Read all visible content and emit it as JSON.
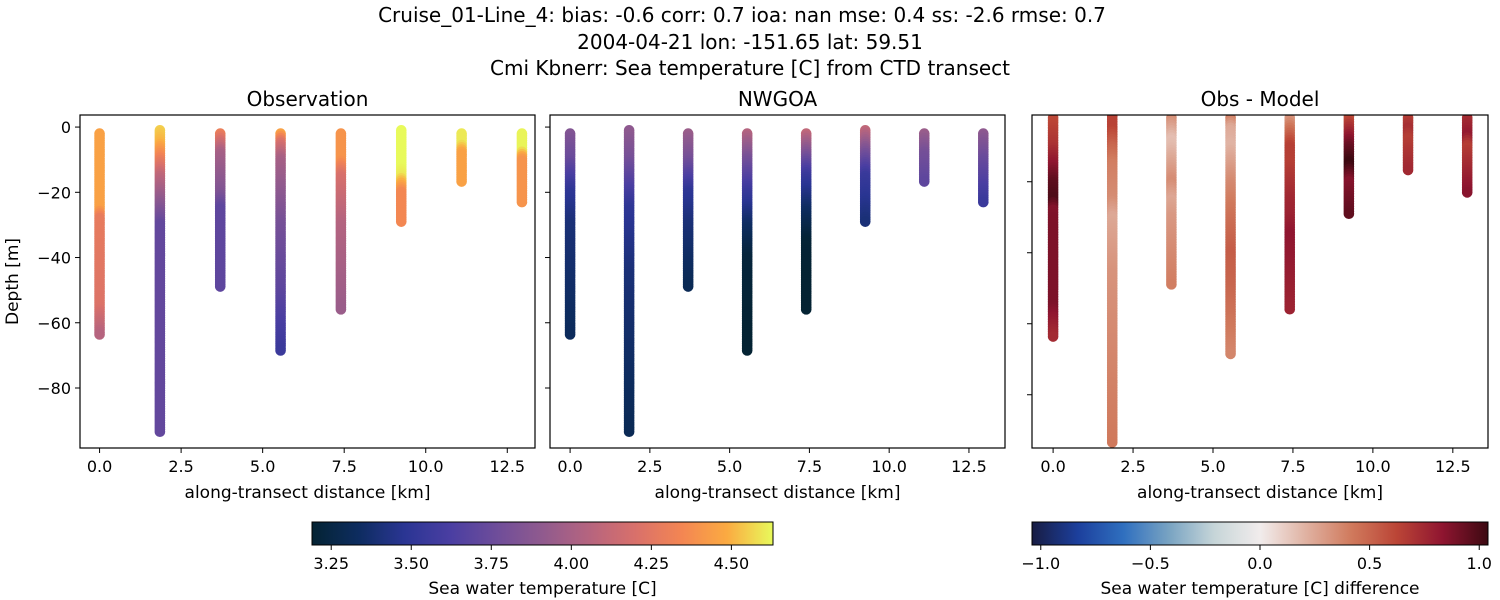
{
  "figure": {
    "title_lines": [
      "Cruise_01-Line_4: bias: -0.6  corr: 0.7  ioa: nan  mse: 0.4  ss: -2.6  rmse: 0.7",
      "2004-04-21 lon: -151.65 lat: 59.51",
      "Cmi Kbnerr: Sea temperature [C] from CTD transect"
    ]
  },
  "chart_data": [
    {
      "type": "scatter",
      "title": "Observation",
      "xlabel": "along-transect distance [km]",
      "ylabel": "Depth [m]",
      "xlim": [
        -0.6,
        13.35
      ],
      "ylim": [
        -98.4,
        3.7
      ],
      "xticks": [
        "0.0",
        "2.5",
        "5.0",
        "7.5",
        "10.0",
        "12.5"
      ],
      "yticks": [
        "0",
        "−20",
        "−40",
        "−60",
        "−80"
      ],
      "show_ytick_labels": true,
      "variable": "obs",
      "colormap": "thermal"
    },
    {
      "type": "scatter",
      "title": "NWGOA",
      "xlabel": "along-transect distance [km]",
      "ylabel": "",
      "xlim": [
        -0.63,
        13.63
      ],
      "ylim": [
        -98.4,
        3.7
      ],
      "xticks": [
        "0.0",
        "2.5",
        "5.0",
        "7.5",
        "10.0",
        "12.5"
      ],
      "yticks": [
        "0",
        "−20",
        "−40",
        "−60",
        "−80"
      ],
      "show_ytick_labels": false,
      "variable": "model",
      "colormap": "thermal"
    },
    {
      "type": "scatter",
      "title": "Obs - Model",
      "xlabel": "along-transect distance [km]",
      "ylabel": "",
      "xlim": [
        -0.66,
        13.6
      ],
      "ylim": [
        -95,
        -1.2
      ],
      "xticks": [
        "0.0",
        "2.5",
        "5.0",
        "7.5",
        "10.0",
        "12.5"
      ],
      "yticks": [
        "−20",
        "−40",
        "−60",
        "−80"
      ],
      "show_ytick_labels": false,
      "variable": "diff",
      "colormap": "balance"
    }
  ],
  "profiles": [
    {
      "x_km": 0.0,
      "top": 2,
      "bottom": 64,
      "obs": [
        [
          2,
          4.45
        ],
        [
          25,
          4.45
        ],
        [
          28,
          4.28
        ],
        [
          55,
          4.22
        ],
        [
          64,
          4.05
        ]
      ],
      "model": [
        [
          2,
          3.85
        ],
        [
          10,
          3.75
        ],
        [
          20,
          3.5
        ],
        [
          30,
          3.4
        ],
        [
          64,
          3.32
        ]
      ]
    },
    {
      "x_km": 1.85,
      "top": 1,
      "bottom": 94,
      "obs": [
        [
          1,
          4.55
        ],
        [
          5,
          4.5
        ],
        [
          10,
          4.3
        ],
        [
          15,
          4.1
        ],
        [
          25,
          3.85
        ],
        [
          30,
          3.72
        ],
        [
          94,
          3.72
        ]
      ],
      "model": [
        [
          2,
          3.9
        ],
        [
          10,
          3.8
        ],
        [
          25,
          3.5
        ],
        [
          45,
          3.4
        ],
        [
          94,
          3.3
        ]
      ]
    },
    {
      "x_km": 3.7,
      "top": 2,
      "bottom": 49,
      "obs": [
        [
          2,
          4.3
        ],
        [
          8,
          4.0
        ],
        [
          20,
          3.85
        ],
        [
          25,
          3.7
        ],
        [
          49,
          3.7
        ]
      ],
      "model": [
        [
          2,
          3.95
        ],
        [
          10,
          3.8
        ],
        [
          20,
          3.5
        ],
        [
          30,
          3.4
        ],
        [
          49,
          3.3
        ]
      ]
    },
    {
      "x_km": 5.55,
      "top": 2,
      "bottom": 69,
      "obs": [
        [
          2,
          4.45
        ],
        [
          5,
          4.2
        ],
        [
          10,
          4.0
        ],
        [
          30,
          3.8
        ],
        [
          50,
          3.7
        ],
        [
          69,
          3.55
        ]
      ],
      "model": [
        [
          2,
          4.05
        ],
        [
          10,
          3.8
        ],
        [
          20,
          3.55
        ],
        [
          30,
          3.35
        ],
        [
          40,
          3.22
        ],
        [
          69,
          3.18
        ]
      ]
    },
    {
      "x_km": 7.4,
      "top": 2,
      "bottom": 56,
      "obs": [
        [
          2,
          4.4
        ],
        [
          10,
          4.4
        ],
        [
          15,
          4.2
        ],
        [
          30,
          4.05
        ],
        [
          56,
          3.95
        ]
      ],
      "model": [
        [
          2,
          4.1
        ],
        [
          10,
          3.75
        ],
        [
          15,
          3.55
        ],
        [
          25,
          3.35
        ],
        [
          35,
          3.2
        ],
        [
          56,
          3.18
        ]
      ]
    },
    {
      "x_km": 9.25,
      "top": 1,
      "bottom": 29,
      "obs": [
        [
          1,
          4.65
        ],
        [
          10,
          4.65
        ],
        [
          15,
          4.6
        ],
        [
          20,
          4.35
        ],
        [
          29,
          4.35
        ]
      ],
      "model": [
        [
          1,
          4.1
        ],
        [
          8,
          3.8
        ],
        [
          15,
          3.55
        ],
        [
          29,
          3.4
        ]
      ]
    },
    {
      "x_km": 11.1,
      "top": 2,
      "bottom": 17,
      "obs": [
        [
          2,
          4.6
        ],
        [
          5,
          4.6
        ],
        [
          8,
          4.45
        ],
        [
          17,
          4.45
        ]
      ],
      "model": [
        [
          2,
          3.95
        ],
        [
          8,
          3.8
        ],
        [
          17,
          3.7
        ]
      ]
    },
    {
      "x_km": 12.95,
      "top": 2,
      "bottom": 23,
      "obs": [
        [
          2,
          4.62
        ],
        [
          7,
          4.62
        ],
        [
          10,
          4.4
        ],
        [
          23,
          4.4
        ]
      ],
      "model": [
        [
          2,
          3.9
        ],
        [
          10,
          3.75
        ],
        [
          23,
          3.55
        ]
      ]
    }
  ],
  "colorbars": [
    {
      "label": "Sea water temperature [C]",
      "range": [
        3.19,
        4.63
      ],
      "ticks": [
        "3.25",
        "3.50",
        "3.75",
        "4.00",
        "4.25",
        "4.50"
      ],
      "tick_values": [
        3.25,
        3.5,
        3.75,
        4.0,
        4.25,
        4.5
      ],
      "colormap": "thermal"
    },
    {
      "label": "Sea water temperature [C] difference",
      "range": [
        -1.04,
        1.04
      ],
      "ticks": [
        "−1.0",
        "−0.5",
        "0.0",
        "0.5",
        "1.0"
      ],
      "tick_values": [
        -1,
        -0.5,
        0,
        0.5,
        1
      ],
      "colormap": "balance"
    }
  ],
  "colormaps": {
    "thermal": [
      "#042333",
      "#0d2c5f",
      "#2a3593",
      "#4a3ea2",
      "#6e4d9a",
      "#905a8e",
      "#b5647f",
      "#d8706b",
      "#f38553",
      "#fbaa41",
      "#e8fa5b"
    ],
    "balance": [
      "#181c43",
      "#1c3f9c",
      "#2f6fbf",
      "#78a3c2",
      "#c6d5d8",
      "#f1ecec",
      "#e0b2a2",
      "#d07a5d",
      "#bb4536",
      "#8f1530",
      "#3c0911"
    ]
  }
}
